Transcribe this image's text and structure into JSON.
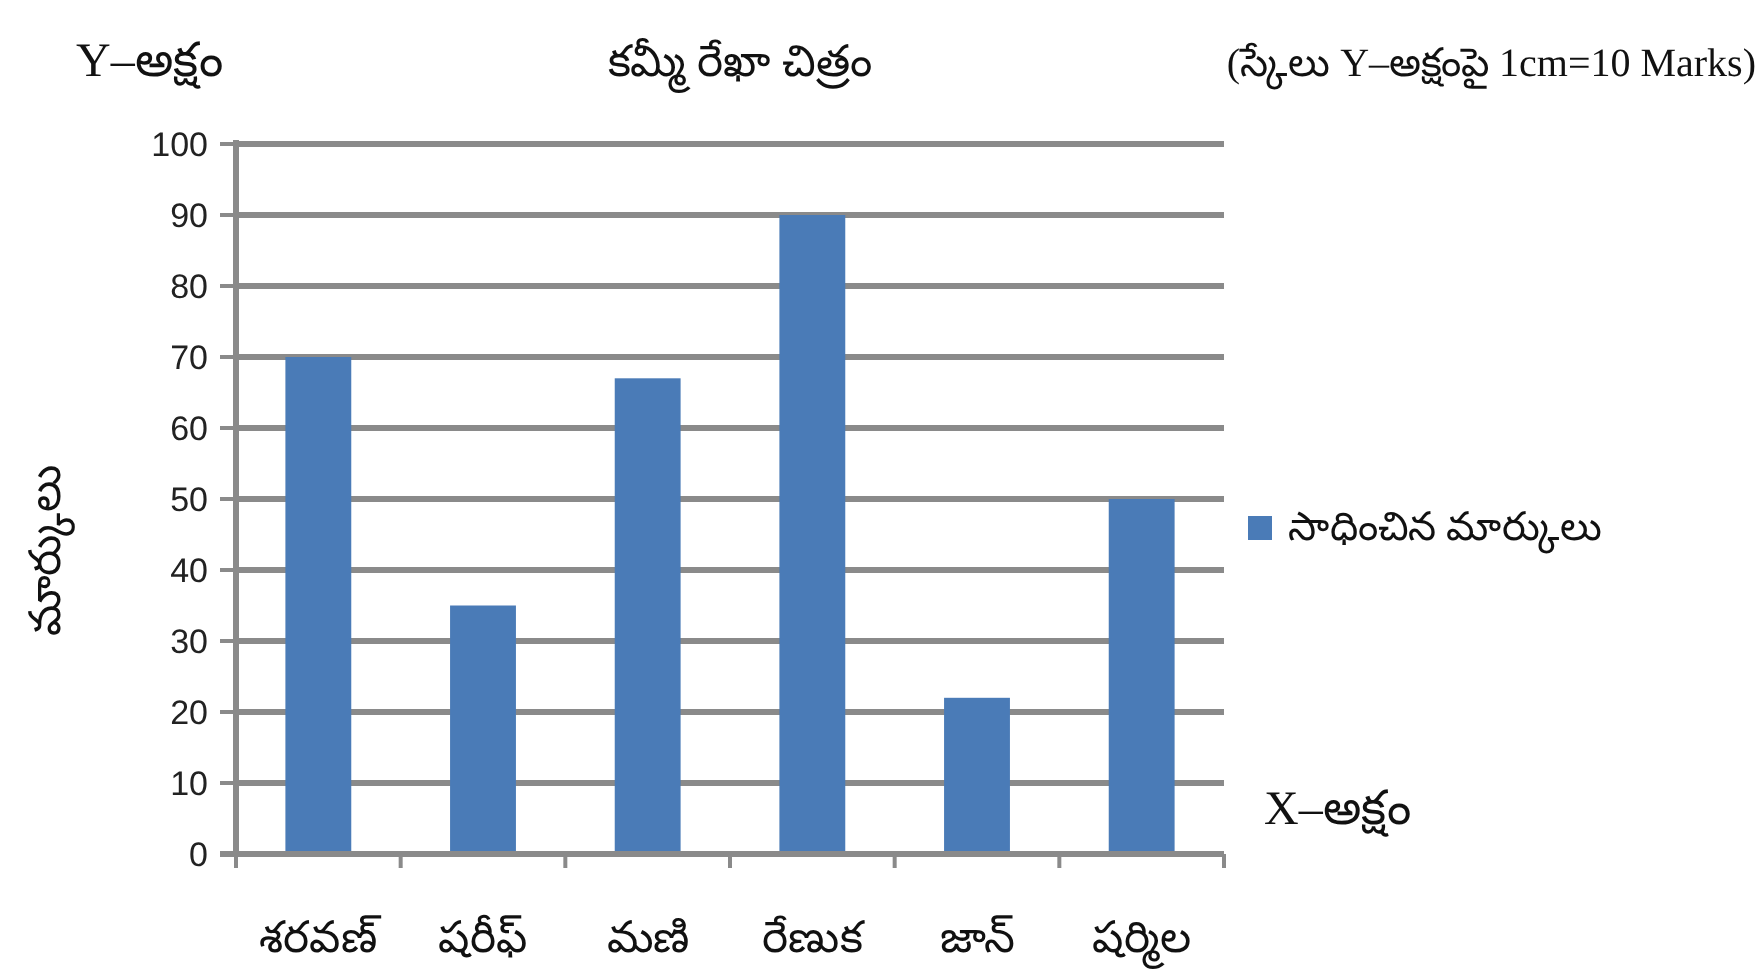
{
  "chart_data": {
    "type": "bar",
    "title": "కమ్మీ రేఖా చిత్రం",
    "subtitle": "(స్కేలు Y–అక్షంపై 1cm=10 Marks)",
    "ylabel": "మార్కులు",
    "annotations": [
      "Y–అక్షం",
      "X–అక్షం"
    ],
    "categories": [
      "శరవణ్",
      "షరీఫ్",
      "మణి",
      "రేణుక",
      "జాన్",
      "షర్మిల"
    ],
    "series": [
      {
        "name": "సాధించిన మార్కులు",
        "color": "#4a7bb7",
        "values": [
          70,
          35,
          67,
          90,
          22,
          50
        ]
      }
    ],
    "ylim": [
      0,
      100
    ],
    "yticks": [
      0,
      10,
      20,
      30,
      40,
      50,
      60,
      70,
      80,
      90,
      100
    ],
    "grid": "y",
    "legend": "right"
  }
}
